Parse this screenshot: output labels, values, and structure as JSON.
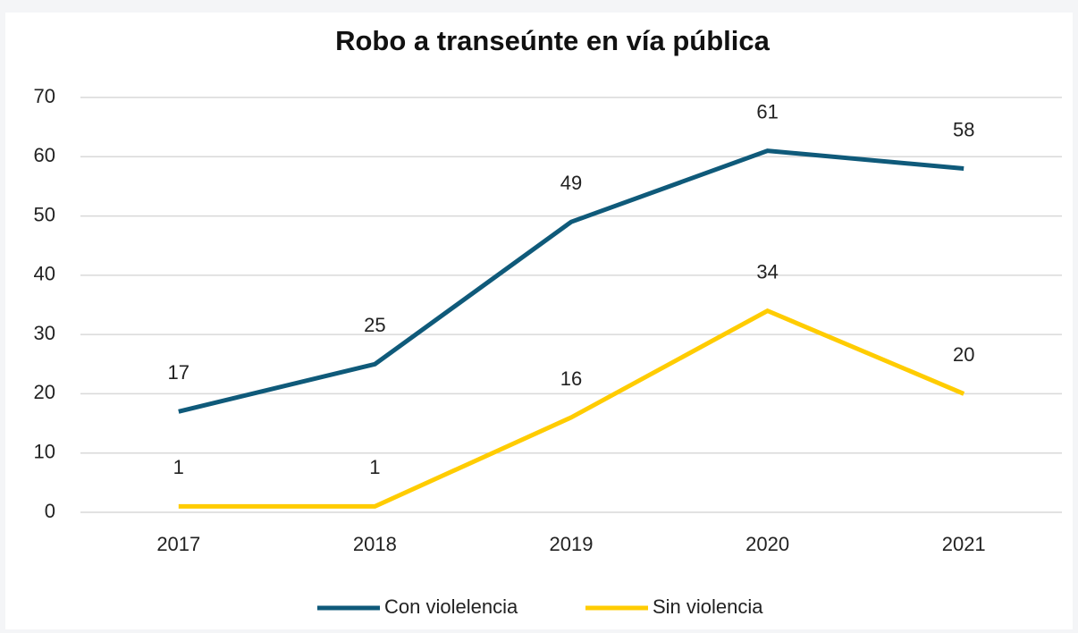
{
  "chart_data": {
    "type": "line",
    "title": "Robo a transeúnte en vía pública",
    "categories": [
      "2017",
      "2018",
      "2019",
      "2020",
      "2021"
    ],
    "series": [
      {
        "name": "Con violelencia",
        "color": "#0f5a7a",
        "values": [
          17,
          25,
          49,
          61,
          58
        ]
      },
      {
        "name": "Sin violencia",
        "color": "#ffcc00",
        "values": [
          1,
          1,
          16,
          34,
          20
        ]
      }
    ],
    "ylim": [
      0,
      70
    ],
    "yticks": [
      0,
      10,
      20,
      30,
      40,
      50,
      60,
      70
    ],
    "grid": true,
    "legend": "bottom"
  }
}
